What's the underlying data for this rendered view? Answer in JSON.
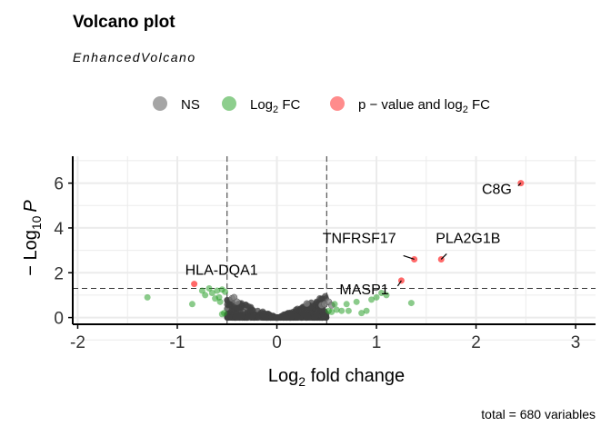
{
  "chart_data": {
    "type": "scatter",
    "title": "Volcano plot",
    "subtitle": "EnhancedVolcano",
    "xlabel_main": "Log",
    "xlabel_sub": "2",
    "xlabel_rest": " fold change",
    "ylabel_prefix": "− Log",
    "ylabel_sub": "10",
    "ylabel_var": "P",
    "caption": "total = 680 variables",
    "xlim": [
      -2.05,
      3.2
    ],
    "ylim": [
      -0.3,
      7.2
    ],
    "x_ticks": [
      -2,
      -1,
      0,
      1,
      2,
      3
    ],
    "x_tick_labels": [
      "-2",
      "-1",
      "0",
      "1",
      "2",
      "3"
    ],
    "y_ticks": [
      0,
      2,
      4,
      6
    ],
    "y_tick_labels": [
      "0",
      "2",
      "4",
      "6"
    ],
    "fc_cutoff": 0.5,
    "p_cutoff_log10": 1.3,
    "grid": true,
    "legend_position": "top",
    "legend": [
      {
        "key": "ns",
        "label": "NS",
        "sub": "",
        "label_after": "",
        "color": "#7f7f7f"
      },
      {
        "key": "fc",
        "label": "Log",
        "sub": "2",
        "label_after": " FC",
        "color": "#1b9e1b"
      },
      {
        "key": "both",
        "label": "p − value and log",
        "sub": "2",
        "label_after": " FC",
        "color": "#ff1a1a"
      }
    ],
    "colors": {
      "ns": "#7f7f7f",
      "fc": "#2ca02c",
      "both": "#ff2a2a",
      "dark": "#404040"
    },
    "points_both": [
      {
        "x": 2.45,
        "y": 6.0,
        "label": "C8G"
      },
      {
        "x": 1.38,
        "y": 2.6,
        "label": "TNFRSF17"
      },
      {
        "x": 1.65,
        "y": 2.6,
        "label": "PLA2G1B"
      },
      {
        "x": -0.83,
        "y": 1.5,
        "label": "HLA-DQA1"
      },
      {
        "x": 1.25,
        "y": 1.65,
        "label": "MASP1"
      }
    ],
    "points_fc": [
      [
        -1.3,
        0.9
      ],
      [
        -0.85,
        0.6
      ],
      [
        -0.75,
        1.2
      ],
      [
        -0.72,
        1.0
      ],
      [
        -0.68,
        1.3
      ],
      [
        -0.65,
        1.1
      ],
      [
        -0.6,
        1.2
      ],
      [
        -0.58,
        0.9
      ],
      [
        -0.55,
        1.25
      ],
      [
        -0.52,
        1.15
      ],
      [
        -0.57,
        0.7
      ],
      [
        -0.53,
        0.2
      ],
      [
        -0.55,
        0.15
      ],
      [
        -0.62,
        0.85
      ],
      [
        0.52,
        0.3
      ],
      [
        0.55,
        0.25
      ],
      [
        0.6,
        0.35
      ],
      [
        0.65,
        0.3
      ],
      [
        0.7,
        0.6
      ],
      [
        0.72,
        0.3
      ],
      [
        0.8,
        0.7
      ],
      [
        0.85,
        0.2
      ],
      [
        0.9,
        0.3
      ],
      [
        1.0,
        0.9
      ],
      [
        1.05,
        1.1
      ],
      [
        1.1,
        1.0
      ],
      [
        1.35,
        0.65
      ],
      [
        0.95,
        0.8
      ],
      [
        0.58,
        0.6
      ]
    ],
    "points_ns": [
      [
        0.45,
        0.55
      ],
      [
        0.48,
        0.6
      ],
      [
        0.3,
        0.62
      ],
      [
        0.52,
        0.7
      ],
      [
        0.55,
        0.55
      ],
      [
        -0.45,
        0.85
      ],
      [
        -0.43,
        0.9
      ],
      [
        -0.4,
        0.7
      ]
    ],
    "ns_cluster": {
      "x_range": [
        -0.5,
        0.5
      ],
      "max_y": 1.0,
      "count": 640
    }
  }
}
